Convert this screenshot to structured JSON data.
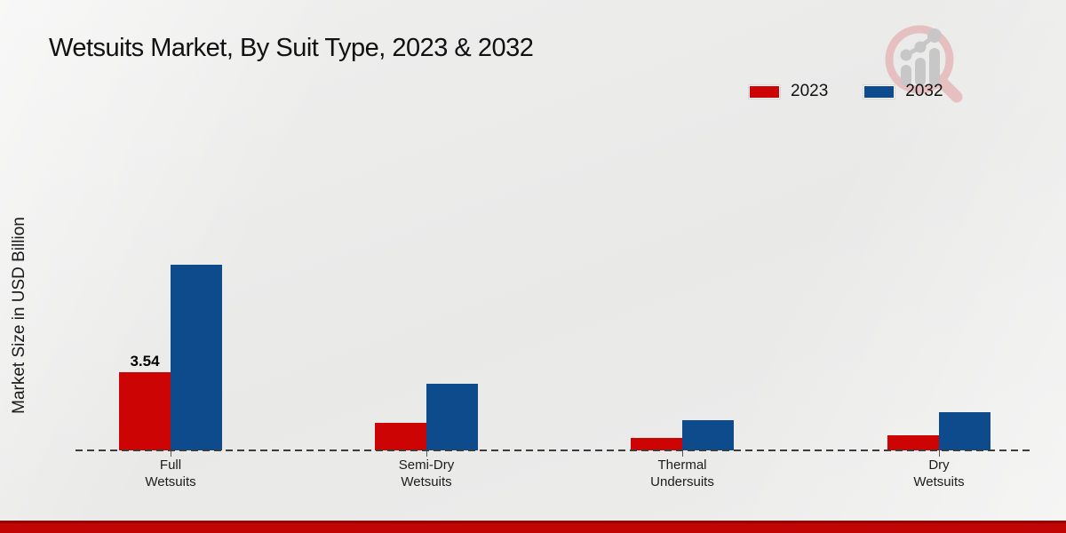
{
  "page": {
    "title": "Wetsuits Market, By Suit Type, 2023 & 2032"
  },
  "chart_data": {
    "type": "bar",
    "title": "Wetsuits Market, By Suit Type, 2023 & 2032",
    "xlabel": "",
    "ylabel": "Market Size in USD Billion",
    "categories": [
      "Full Wetsuits",
      "Semi-Dry Wetsuits",
      "Thermal Undersuits",
      "Dry Wetsuits"
    ],
    "category_lines": [
      [
        "Full",
        "Wetsuits"
      ],
      [
        "Semi-Dry",
        "Wetsuits"
      ],
      [
        "Thermal",
        "Undersuits"
      ],
      [
        "Dry",
        "Wetsuits"
      ]
    ],
    "series": [
      {
        "name": "2023",
        "color": "#cc0404",
        "values": [
          3.54,
          1.25,
          0.56,
          0.68
        ]
      },
      {
        "name": "2032",
        "color": "#0d4b8c",
        "values": [
          8.4,
          3.0,
          1.37,
          1.72
        ]
      }
    ],
    "annotations": [
      {
        "series": "2023",
        "category_index": 0,
        "text": "3.54"
      }
    ],
    "ylim": [
      0,
      9
    ],
    "grid": false,
    "legend_position": "top-right",
    "baseline_style": "dashed"
  },
  "footer": {
    "accent_color": "#c10505"
  },
  "icons": {
    "logo": "magnifier-bar-chart-logo"
  }
}
